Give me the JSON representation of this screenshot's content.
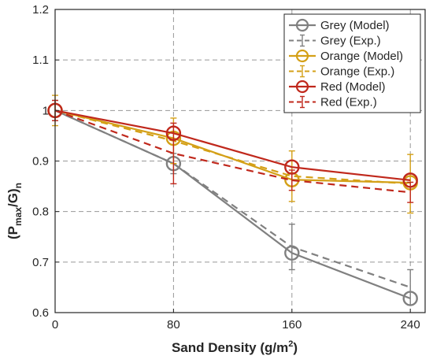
{
  "chart_data": {
    "type": "line",
    "x": [
      0,
      80,
      160,
      240
    ],
    "xticks": [
      "0",
      "80",
      "160",
      "240"
    ],
    "yticks": [
      "0.6",
      "0.7",
      "0.8",
      "0.9",
      "1",
      "1.1",
      "1.2"
    ],
    "xlim": [
      0,
      250
    ],
    "ylim": [
      0.6,
      1.2
    ],
    "xlabel": "Sand Density (g/m",
    "xlabel_sup": "2",
    "xlabel_end": ")",
    "ylabel": "(P",
    "ylabel_sub1": "max",
    "ylabel_mid": "/G)",
    "ylabel_sub2": "n",
    "grid": true,
    "legend_position": "top-right",
    "series": [
      {
        "name": "Grey (Model)",
        "kind": "model",
        "color": "#808080",
        "values": [
          1.0,
          0.895,
          0.718,
          0.628
        ]
      },
      {
        "name": "Grey (Exp.)",
        "kind": "exp",
        "color": "#808080",
        "values": [
          1.0,
          0.895,
          0.73,
          0.65
        ],
        "errors": [
          0.02,
          0.02,
          0.045,
          0.035
        ]
      },
      {
        "name": "Orange (Model)",
        "kind": "model",
        "color": "#D4A017",
        "values": [
          1.0,
          0.945,
          0.863,
          0.857
        ]
      },
      {
        "name": "Orange (Exp.)",
        "kind": "exp",
        "color": "#D4A017",
        "values": [
          1.0,
          0.94,
          0.87,
          0.855
        ],
        "errors": [
          0.03,
          0.045,
          0.05,
          0.058
        ]
      },
      {
        "name": "Red (Model)",
        "kind": "model",
        "color": "#C0281C",
        "values": [
          1.0,
          0.955,
          0.888,
          0.862
        ]
      },
      {
        "name": "Red (Exp.)",
        "kind": "exp",
        "color": "#C0281C",
        "values": [
          1.0,
          0.915,
          0.862,
          0.838
        ],
        "errors": [
          0.02,
          0.06,
          0.02,
          0.02
        ]
      }
    ]
  }
}
